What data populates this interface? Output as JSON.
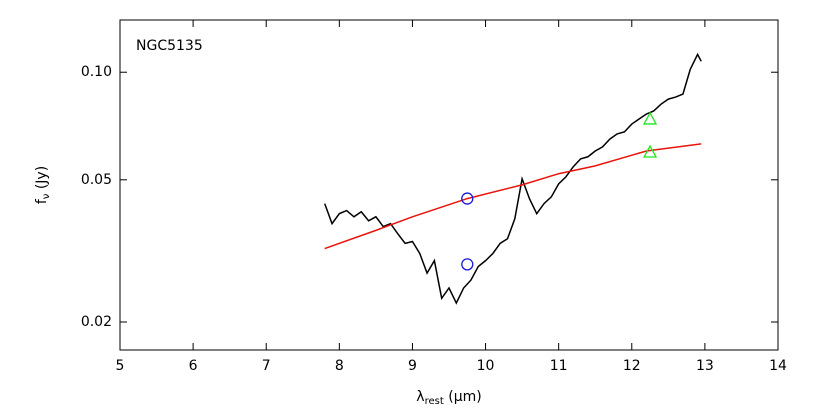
{
  "chart_data": {
    "type": "line",
    "annotation": "NGC5135",
    "x_label": {
      "symbol": "λ",
      "sub": "rest",
      "unit": " (μm)"
    },
    "y_label": {
      "symbol": "f",
      "sub": "ν",
      "unit": " (Jy)"
    },
    "xlim": [
      5,
      14
    ],
    "xticks": [
      5,
      6,
      7,
      8,
      9,
      10,
      11,
      12,
      13,
      14
    ],
    "ylim": [
      0.0167,
      0.14
    ],
    "yticks": [
      0.02,
      0.05,
      {
        "value": 0.1,
        "label": "0.10"
      }
    ],
    "log_y": true,
    "grid": false,
    "series": [
      {
        "kind": "line",
        "color": "#000000",
        "x": [
          7.8,
          7.9,
          8.0,
          8.1,
          8.2,
          8.3,
          8.4,
          8.5,
          8.6,
          8.7,
          8.8,
          8.9,
          9.0,
          9.1,
          9.2,
          9.3,
          9.4,
          9.5,
          9.6,
          9.7,
          9.8,
          9.9,
          10.0,
          10.1,
          10.2,
          10.3,
          10.4,
          10.5,
          10.6,
          10.7,
          10.8,
          10.9,
          11.0,
          11.1,
          11.2,
          11.3,
          11.4,
          11.5,
          11.6,
          11.7,
          11.8,
          11.9,
          12.0,
          12.1,
          12.2,
          12.3,
          12.4,
          12.5,
          12.6,
          12.7,
          12.8,
          12.9,
          12.95
        ],
        "values": [
          0.0429,
          0.0377,
          0.0402,
          0.041,
          0.0394,
          0.0407,
          0.0384,
          0.0394,
          0.037,
          0.0377,
          0.0353,
          0.0332,
          0.0336,
          0.0311,
          0.0274,
          0.0297,
          0.0233,
          0.0249,
          0.0226,
          0.0249,
          0.0262,
          0.0286,
          0.0297,
          0.0311,
          0.0332,
          0.0342,
          0.0389,
          0.0503,
          0.0443,
          0.0402,
          0.0429,
          0.0448,
          0.0487,
          0.051,
          0.0544,
          0.0572,
          0.058,
          0.0602,
          0.0618,
          0.065,
          0.0672,
          0.0681,
          0.0716,
          0.074,
          0.0764,
          0.0779,
          0.0814,
          0.0841,
          0.0852,
          0.0869,
          0.1019,
          0.1122,
          0.1073
        ]
      },
      {
        "kind": "line",
        "color": "#e8140c",
        "x": [
          7.8,
          8.5,
          9.0,
          9.75,
          10.5,
          11.0,
          11.5,
          12.2,
          12.95
        ],
        "values": [
          0.0321,
          0.0361,
          0.0394,
          0.0443,
          0.0484,
          0.052,
          0.0547,
          0.0602,
          0.063
        ]
      },
      {
        "kind": "circle",
        "color": "#1a1ad6",
        "x": [
          9.75,
          9.75
        ],
        "values": [
          0.0443,
          0.029
        ]
      },
      {
        "kind": "triangle",
        "color": "#1ee61e",
        "x": [
          12.25,
          12.25
        ],
        "values": [
          0.074,
          0.0598
        ]
      }
    ]
  }
}
